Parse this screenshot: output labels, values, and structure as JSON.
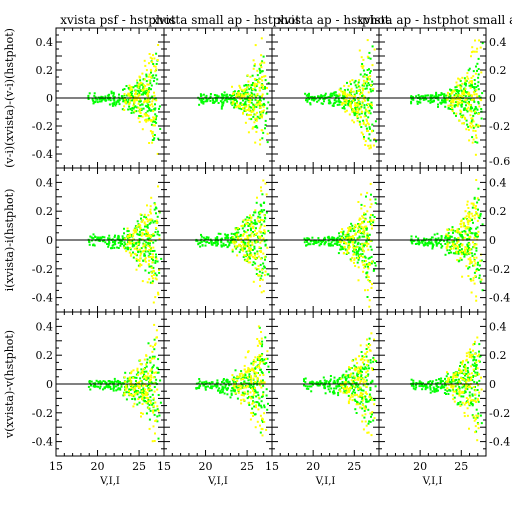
{
  "colors": {
    "primary": "#00ff00",
    "secondary": "#ffff00",
    "axis": "#000000",
    "background": "#ffffff"
  },
  "chart_data": {
    "type": "scatter",
    "grid": false,
    "columns": [
      {
        "title": "xvista psf - hstphot",
        "xlabel": "V,I,I",
        "xticks": [
          "15",
          "20",
          "25"
        ]
      },
      {
        "title": "xvista small ap - hstphot",
        "xlabel": "V,I,I",
        "xticks": [
          "15",
          "20",
          "25"
        ]
      },
      {
        "title": "xvista ap - hstphot",
        "xlabel": "V,I,I",
        "xticks": [
          "15",
          "20",
          "25"
        ]
      },
      {
        "title": "xvista ap - hstphot small ap",
        "xlabel": "V,I,I",
        "xticks": [
          "20",
          "25"
        ]
      }
    ],
    "rows": [
      {
        "ylabel": "(v-i)(xvista)-(v-i)(hstphot)"
      },
      {
        "ylabel": "i(xvista)-i(hstphot)"
      },
      {
        "ylabel": "v(xvista)-v(hstphot)"
      }
    ],
    "xlim": [
      15,
      28
    ],
    "ylim": [
      -0.5,
      0.5
    ],
    "yticks_left": [
      "0.4",
      "0.2",
      "0",
      "-0.2",
      "-0.4"
    ],
    "yticks_right": [
      "0.4",
      "0.2",
      "0",
      "-0.2",
      "-0.4"
    ],
    "yticks_right_top": [
      "0.4",
      "0.2",
      "0",
      "-0.2",
      "-0.6"
    ],
    "reference_line": 0,
    "series": [
      {
        "color": "#00ff00",
        "x": [
          19.2,
          20.1,
          20.9,
          21.6,
          22.2,
          22.8,
          23.3,
          23.8,
          24.2,
          24.6,
          25.0,
          25.3,
          25.6,
          25.9,
          26.2,
          26.5,
          26.8,
          27.1
        ],
        "y": [
          -0.04,
          0.03,
          -0.02,
          0.05,
          -0.06,
          0.04,
          -0.08,
          0.09,
          -0.1,
          0.12,
          -0.15,
          0.14,
          -0.18,
          0.2,
          -0.25,
          0.28,
          -0.32,
          0.35
        ]
      },
      {
        "color": "#ffff00",
        "x": [
          23.5,
          24.1,
          24.6,
          25.0,
          25.4,
          25.7,
          26.0,
          26.3,
          26.6,
          26.9
        ],
        "y": [
          0.08,
          -0.1,
          0.15,
          -0.18,
          0.22,
          -0.25,
          0.3,
          -0.34,
          0.38,
          -0.42
        ]
      }
    ]
  }
}
